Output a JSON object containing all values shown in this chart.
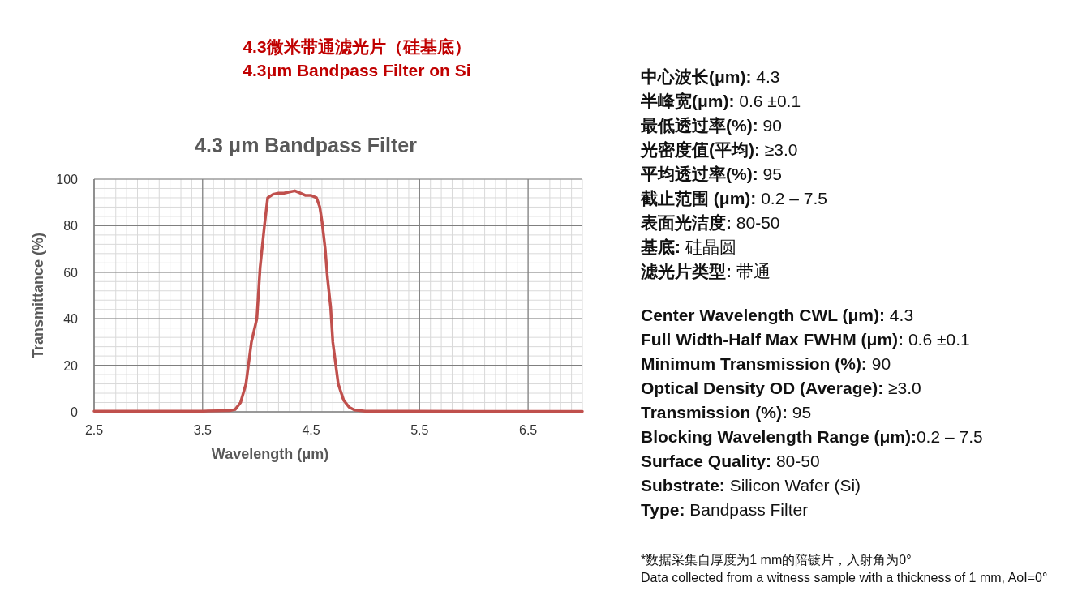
{
  "chart_data": [
    {
      "type": "line",
      "title": "4.3 μm Bandpass Filter",
      "xlabel": "Wavelength (μm)",
      "ylabel": "Transmittance (%)",
      "xlim": [
        2.5,
        7.0
      ],
      "xticks": [
        2.5,
        3.5,
        4.5,
        5.5,
        6.5
      ],
      "ylim": [
        0,
        100
      ],
      "yticks": [
        0,
        20,
        40,
        60,
        80,
        100
      ],
      "grid": true,
      "series": [
        {
          "color": "#c0504d",
          "x": [
            2.5,
            3.0,
            3.5,
            3.75,
            3.8,
            3.85,
            3.9,
            3.95,
            4.0,
            4.03,
            4.07,
            4.1,
            4.15,
            4.2,
            4.25,
            4.3,
            4.35,
            4.4,
            4.45,
            4.5,
            4.55,
            4.58,
            4.6,
            4.63,
            4.65,
            4.68,
            4.7,
            4.75,
            4.8,
            4.85,
            4.9,
            5.0,
            6.0,
            7.0
          ],
          "values": [
            0.3,
            0.3,
            0.3,
            0.5,
            1,
            4,
            12,
            30,
            40,
            62,
            80,
            92,
            93.5,
            94,
            94,
            94.5,
            95,
            94,
            93,
            93,
            92,
            88,
            82,
            70,
            58,
            45,
            30,
            12,
            5,
            2,
            0.8,
            0.3,
            0.2,
            0.2
          ]
        }
      ]
    },
    {
      "type": "other",
      "title": "4.3微米带通滤光片（硅基底）",
      "subtitle": "4.3μm Bandpass Filter on Si",
      "annotations": [
        "中心波长(μm): 4.3",
        "半峰宽(μm): 0.6 ±0.1",
        "最低透过率(%): 90",
        "光密度值(平均): ≥3.0",
        "平均透过率(%): 95",
        "截止范围 (μm): 0.2 – 7.5",
        "表面光洁度: 80-50",
        "基底: 硅晶圆",
        "滤光片类型: 带通",
        "Center Wavelength CWL (μm): 4.3",
        "Full Width-Half Max FWHM (μm): 0.6 ±0.1",
        "Minimum Transmission (%): 90",
        "Optical Density OD (Average): ≥3.0",
        "Transmission (%): 95",
        "Blocking Wavelength Range (μm):0.2 – 7.5",
        "Surface Quality: 80-50",
        "Substrate: Silicon Wafer (Si)",
        "Type: Bandpass Filter",
        "*数据采集自厚度为1 mm的陪镀片，入射角为0°",
        "Data collected from a witness sample with a thickness of 1 mm, AoI=0°"
      ]
    }
  ]
}
